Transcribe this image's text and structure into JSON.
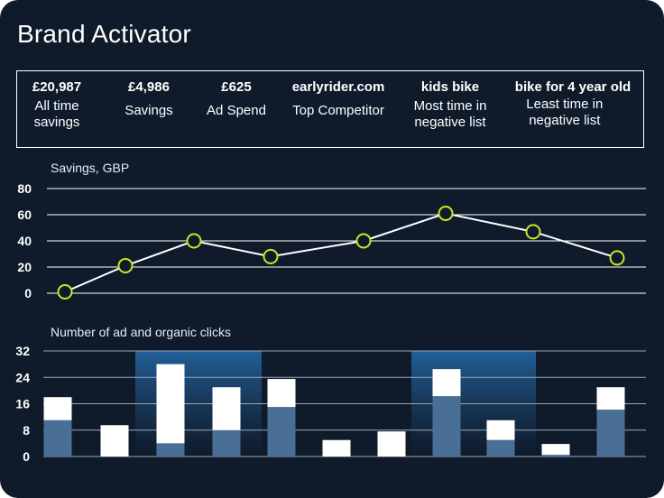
{
  "title": "Brand Activator",
  "kpis": [
    {
      "value": "£20,987",
      "label": "All time savings"
    },
    {
      "value": "£4,986",
      "label": "Savings"
    },
    {
      "value": "£625",
      "label": "Ad Spend"
    },
    {
      "value": "earlyrider.com",
      "label": "Top Competitor"
    },
    {
      "value": "kids bike",
      "label": "Most time in negative list"
    },
    {
      "value": "bike for 4 year old",
      "label": "Least time in negative list"
    }
  ],
  "chart_data": [
    {
      "type": "line",
      "title": "Savings, GBP",
      "ylim": [
        0,
        80
      ],
      "yticks": [
        0,
        20,
        40,
        60,
        80
      ],
      "grid": true,
      "values": [
        1,
        21,
        40,
        28,
        40,
        61,
        47,
        27
      ],
      "colors": {
        "line": "#ffffff",
        "marker": "#c8e62a"
      }
    },
    {
      "type": "bar",
      "stacked": true,
      "title": "Number of ad and organic clicks",
      "ylim": [
        0,
        32
      ],
      "yticks": [
        0,
        8,
        16,
        24,
        32
      ],
      "grid": true,
      "series": [
        {
          "values": [
            11,
            0,
            4,
            8,
            15,
            0,
            0,
            18.3,
            5,
            0.5,
            14.2
          ],
          "color": "#4a6f96"
        },
        {
          "values": [
            7,
            9.5,
            24,
            13,
            8.5,
            5,
            7.6,
            8.2,
            6,
            3.3,
            6.8
          ],
          "color": "#ffffff"
        }
      ],
      "highlighted_bars": [
        [
          2,
          3
        ],
        [
          7,
          8
        ]
      ],
      "colors": {
        "highlight": "#1f5a8c"
      }
    }
  ]
}
